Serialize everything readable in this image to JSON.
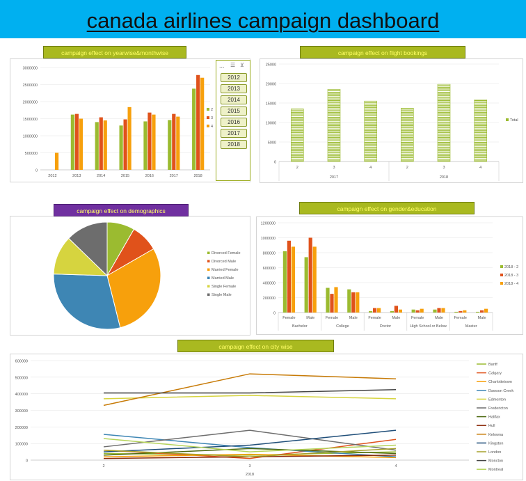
{
  "dashboard": {
    "title": "canada airlines campaign dashboard"
  },
  "slicer": {
    "header": "...",
    "years": [
      "2012",
      "2013",
      "2014",
      "2015",
      "2016",
      "2017",
      "2018"
    ]
  },
  "colors": {
    "banner": "#00b0f0",
    "series_2": "#9bbb30",
    "series_3": "#e0521b",
    "series_4": "#f7a00c",
    "title_olive": "#a9b920",
    "title_purple": "#7030a0",
    "title_text": "#ffff66"
  },
  "chart_data": [
    {
      "id": "yearwise",
      "type": "bar",
      "title": "campaign effect on yearwise&monthwise",
      "categories": [
        "2012",
        "2013",
        "2014",
        "2015",
        "2016",
        "2017",
        "2018"
      ],
      "series": [
        {
          "name": "2",
          "values": [
            0,
            1620000,
            1400000,
            1300000,
            1420000,
            1460000,
            2380000
          ]
        },
        {
          "name": "3",
          "values": [
            0,
            1640000,
            1540000,
            1480000,
            1680000,
            1640000,
            2780000
          ]
        },
        {
          "name": "4",
          "values": [
            500000,
            1500000,
            1450000,
            1840000,
            1620000,
            1560000,
            2700000
          ]
        }
      ],
      "yticks": [
        "0",
        "500000",
        "1000000",
        "1500000",
        "2000000",
        "2500000",
        "3000000"
      ],
      "ylim": [
        0,
        3000000
      ],
      "legend": "right"
    },
    {
      "id": "flight_bookings",
      "type": "bar",
      "title": "campaign effect on flight bookings",
      "categories": [
        "2",
        "3",
        "4",
        "2",
        "3",
        "4"
      ],
      "groups": [
        "2017",
        "2018"
      ],
      "series": [
        {
          "name": "Total",
          "values": [
            13500,
            18500,
            15500,
            13700,
            19800,
            15800
          ]
        }
      ],
      "yticks": [
        "0",
        "5000",
        "10000",
        "15000",
        "20000",
        "25000"
      ],
      "ylim": [
        0,
        25000
      ],
      "legend": "right"
    },
    {
      "id": "demographics",
      "type": "pie",
      "title": "campaign effect on demographics",
      "labels": [
        "Divorced Female",
        "Divorced Male",
        "Married Female",
        "Married Male",
        "Single Female",
        "Single Male"
      ],
      "values": [
        8.5,
        8.5,
        30,
        30,
        12,
        13
      ],
      "colors": [
        "#9bbb30",
        "#e0521b",
        "#f7a00c",
        "#3e86b4",
        "#d6d43f",
        "#6d6d6d"
      ],
      "legend": "right"
    },
    {
      "id": "gender_education",
      "type": "bar",
      "title": "campaign effect on gender&education",
      "categories": [
        "Female",
        "Male",
        "Female",
        "Male",
        "Female",
        "Male",
        "Female",
        "Male",
        "Female",
        "Male"
      ],
      "groups": [
        "Bachelor",
        "College",
        "Doctor",
        "High School or Below",
        "Master"
      ],
      "series": [
        {
          "name": "2018 - 2",
          "values": [
            820000,
            740000,
            330000,
            310000,
            20000,
            20000,
            40000,
            40000,
            10000,
            10000
          ]
        },
        {
          "name": "2018 - 3",
          "values": [
            960000,
            1000000,
            250000,
            270000,
            60000,
            90000,
            30000,
            60000,
            20000,
            30000
          ]
        },
        {
          "name": "2018 - 4",
          "values": [
            880000,
            880000,
            340000,
            270000,
            60000,
            40000,
            50000,
            60000,
            30000,
            50000
          ]
        }
      ],
      "yticks": [
        "0",
        "200000",
        "400000",
        "600000",
        "800000",
        "1000000",
        "1200000"
      ],
      "ylim": [
        0,
        1200000
      ],
      "legend": "right"
    },
    {
      "id": "city_wise",
      "type": "line",
      "title": "campaign effect on city wise",
      "x": [
        "2",
        "3",
        "4"
      ],
      "xgroup": "2018",
      "yticks": [
        "0",
        "100000",
        "200000",
        "300000",
        "400000",
        "500000",
        "600000"
      ],
      "ylim": [
        0,
        600000
      ],
      "legend": "right",
      "series": [
        {
          "name": "Banff",
          "color": "#9bbb30",
          "values": [
            40000,
            30000,
            50000
          ]
        },
        {
          "name": "Calgary",
          "color": "#e0521b",
          "values": [
            60000,
            10000,
            125000
          ]
        },
        {
          "name": "Charlottetown",
          "color": "#f7a00c",
          "values": [
            20000,
            35000,
            15000
          ]
        },
        {
          "name": "Dawson Creek",
          "color": "#3e86b4",
          "values": [
            155000,
            75000,
            20000
          ]
        },
        {
          "name": "Edmonton",
          "color": "#d6d43f",
          "values": [
            370000,
            390000,
            370000
          ]
        },
        {
          "name": "Fredericton",
          "color": "#6d6d6d",
          "values": [
            80000,
            180000,
            60000
          ]
        },
        {
          "name": "Halifax",
          "color": "#4e6a12",
          "values": [
            30000,
            70000,
            40000
          ]
        },
        {
          "name": "Hull",
          "color": "#8a2a0a",
          "values": [
            10000,
            20000,
            30000
          ]
        },
        {
          "name": "Kelowna",
          "color": "#c77a06",
          "values": [
            330000,
            520000,
            490000
          ]
        },
        {
          "name": "Kingston",
          "color": "#1f4e79",
          "values": [
            50000,
            90000,
            180000
          ]
        },
        {
          "name": "London",
          "color": "#a6a02a",
          "values": [
            60000,
            20000,
            70000
          ]
        },
        {
          "name": "Moncton",
          "color": "#444444",
          "values": [
            405000,
            405000,
            425000
          ]
        },
        {
          "name": "Montreal",
          "color": "#b5d35a",
          "values": [
            130000,
            50000,
            90000
          ]
        }
      ]
    }
  ]
}
